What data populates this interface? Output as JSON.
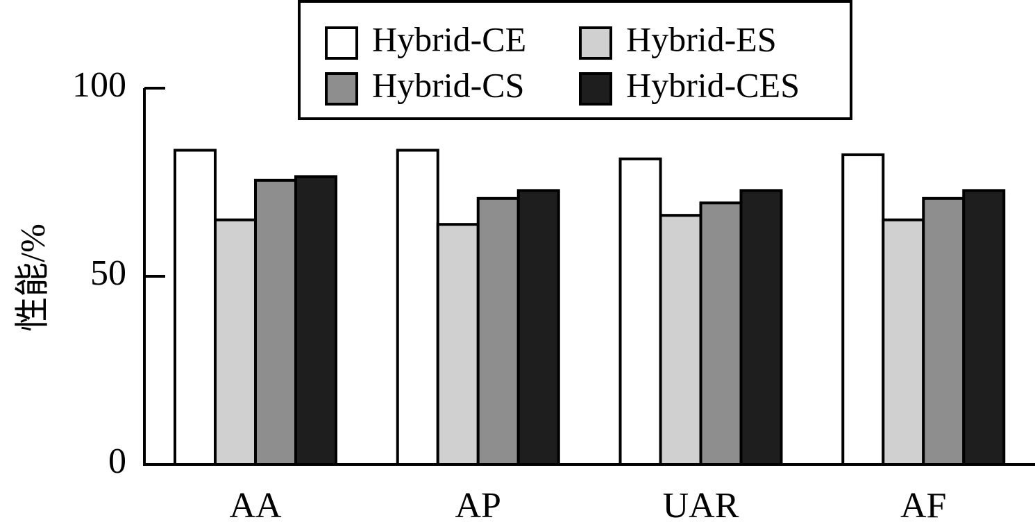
{
  "chart_data": {
    "type": "bar",
    "title": "",
    "xlabel": "",
    "ylabel": "性能/%",
    "ylim": [
      0,
      100
    ],
    "yticks": [
      "0",
      "50",
      "100"
    ],
    "categories": [
      "AA",
      "AP",
      "UAR",
      "AF"
    ],
    "series": [
      {
        "name": "Hybrid-CE",
        "color": "#ffffff",
        "values": [
          83.5,
          83.5,
          81.2,
          82.3
        ]
      },
      {
        "name": "Hybrid-ES",
        "color": "#d0d0d0",
        "values": [
          65.0,
          63.8,
          66.2,
          65.0
        ]
      },
      {
        "name": "Hybrid-CS",
        "color": "#8e8e8e",
        "values": [
          75.5,
          70.7,
          69.5,
          70.7
        ]
      },
      {
        "name": "Hybrid-CES",
        "color": "#1e1e1e",
        "values": [
          76.5,
          72.8,
          72.8,
          72.8
        ]
      }
    ],
    "grid": false,
    "legend_position": "top"
  }
}
